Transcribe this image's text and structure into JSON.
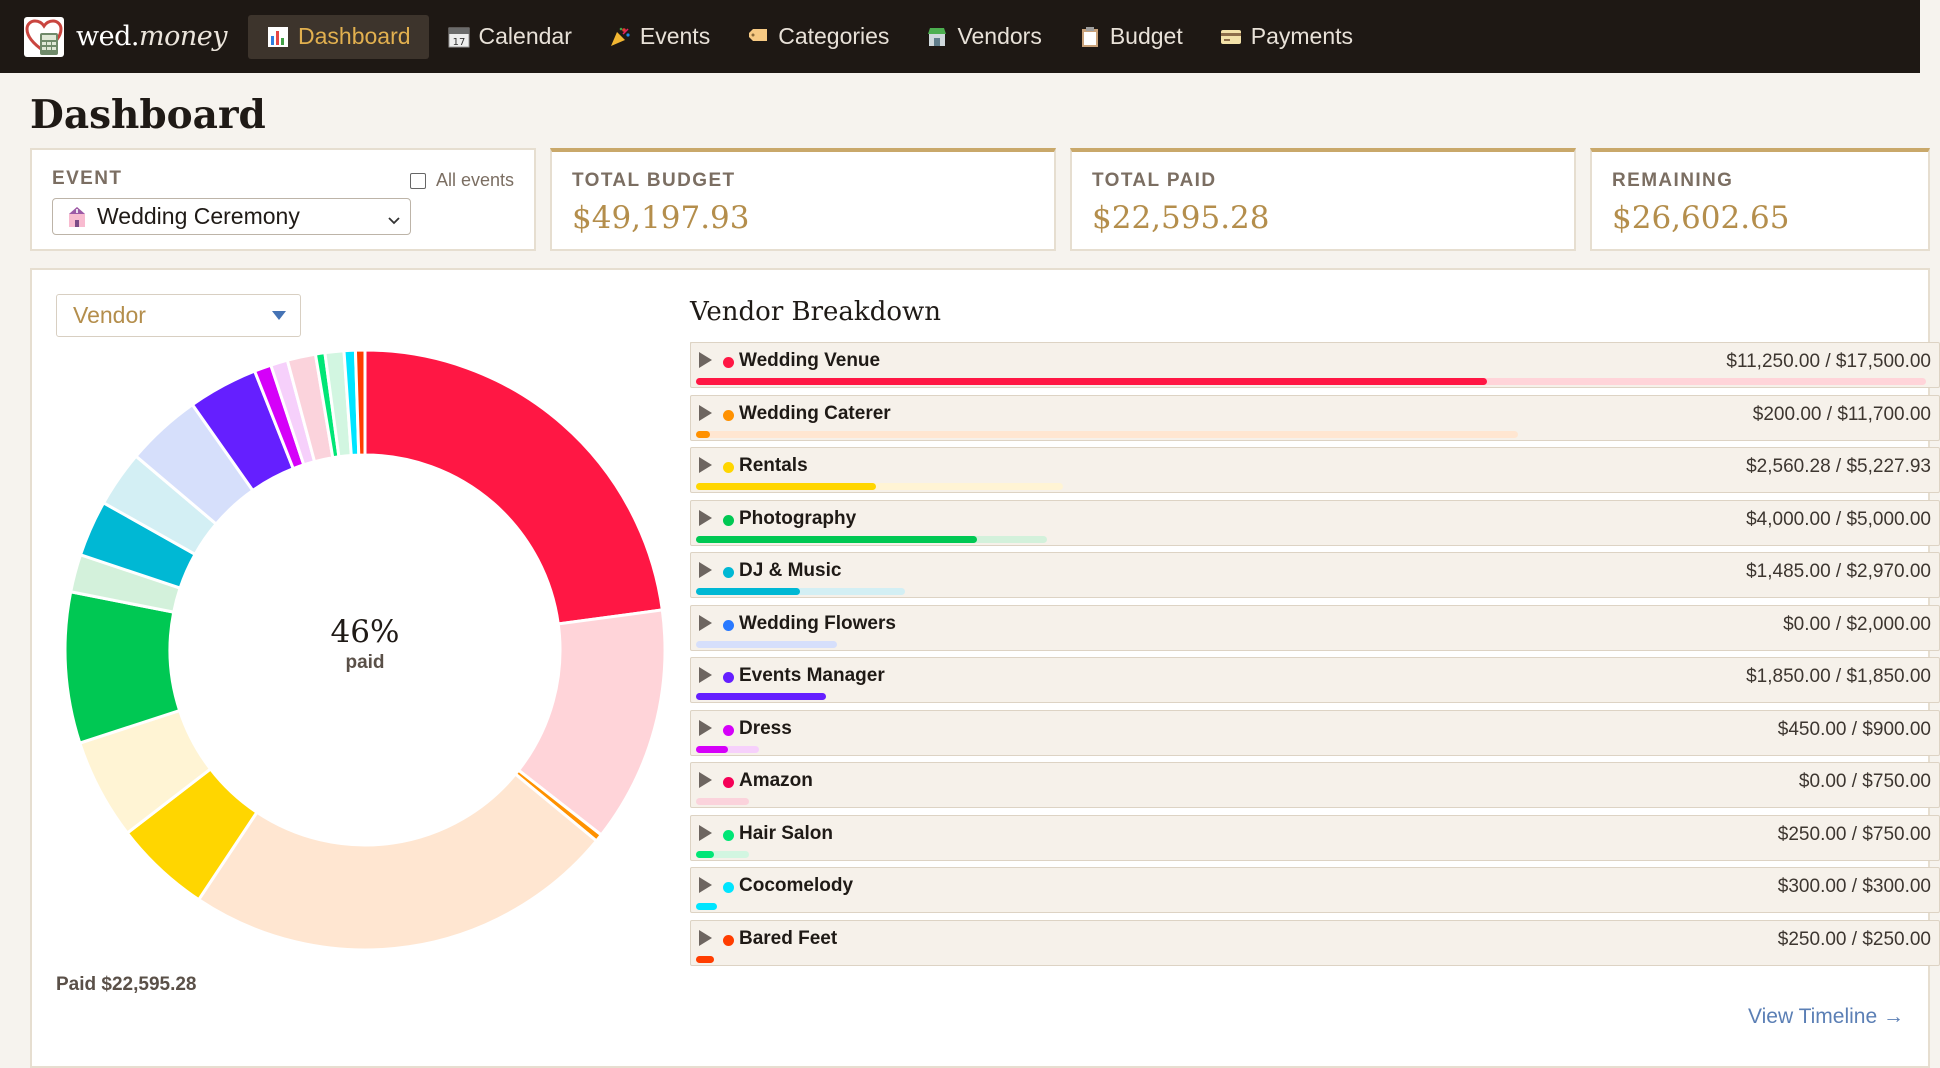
{
  "nav": {
    "brand_main": "wed.",
    "brand_italic": "money",
    "items": [
      {
        "label": "Dashboard",
        "icon": "bar-chart-icon",
        "active": true
      },
      {
        "label": "Calendar",
        "icon": "calendar-icon"
      },
      {
        "label": "Events",
        "icon": "party-popper-icon"
      },
      {
        "label": "Categories",
        "icon": "tag-icon"
      },
      {
        "label": "Vendors",
        "icon": "store-icon"
      },
      {
        "label": "Budget",
        "icon": "clipboard-icon"
      },
      {
        "label": "Payments",
        "icon": "credit-card-icon"
      }
    ]
  },
  "page": {
    "title": "Dashboard"
  },
  "event_card": {
    "label": "EVENT",
    "all_events_label": "All events",
    "selected_event": "Wedding Ceremony"
  },
  "summary": {
    "total_budget_label": "TOTAL BUDGET",
    "total_budget": "$49,197.93",
    "total_paid_label": "TOTAL PAID",
    "total_paid": "$22,595.28",
    "remaining_label": "REMAINING",
    "remaining": "$26,602.65"
  },
  "panel": {
    "group_by": "Vendor",
    "center_percent": "46%",
    "center_label": "paid",
    "paid_note": "Paid $22,595.28",
    "breakdown_title": "Vendor Breakdown",
    "view_timeline": "View Timeline →"
  },
  "chart_data": {
    "type": "pie",
    "donut": true,
    "series": [
      {
        "name": "Wedding Venue",
        "paid": 11250.0,
        "budget": 17500.0,
        "amount_label": "$11,250.00 / $17,500.00",
        "color": "#ff1744",
        "light": "#ffd4d9"
      },
      {
        "name": "Wedding Caterer",
        "paid": 200.0,
        "budget": 11700.0,
        "amount_label": "$200.00 / $11,700.00",
        "color": "#ff9100",
        "light": "#ffe6d1"
      },
      {
        "name": "Rentals",
        "paid": 2560.28,
        "budget": 5227.93,
        "amount_label": "$2,560.28 / $5,227.93",
        "color": "#ffd600",
        "light": "#fff4d4"
      },
      {
        "name": "Photography",
        "paid": 4000.0,
        "budget": 5000.0,
        "amount_label": "$4,000.00 / $5,000.00",
        "color": "#00c853",
        "light": "#d3f1db"
      },
      {
        "name": "DJ & Music",
        "paid": 1485.0,
        "budget": 2970.0,
        "amount_label": "$1,485.00 / $2,970.00",
        "color": "#00b8d4",
        "light": "#d3eff4"
      },
      {
        "name": "Wedding Flowers",
        "paid": 0.0,
        "budget": 2000.0,
        "amount_label": "$0.00 / $2,000.00",
        "color": "#2979ff",
        "light": "#d6dffb"
      },
      {
        "name": "Events Manager",
        "paid": 1850.0,
        "budget": 1850.0,
        "amount_label": "$1,850.00 / $1,850.00",
        "color": "#651fff",
        "light": "#e0d6ff"
      },
      {
        "name": "Dress",
        "paid": 450.0,
        "budget": 900.0,
        "amount_label": "$450.00 / $900.00",
        "color": "#d500f9",
        "light": "#f6d0fb"
      },
      {
        "name": "Amazon",
        "paid": 0.0,
        "budget": 750.0,
        "amount_label": "$0.00 / $750.00",
        "color": "#f50057",
        "light": "#fbd3dc"
      },
      {
        "name": "Hair Salon",
        "paid": 250.0,
        "budget": 750.0,
        "amount_label": "$250.00 / $750.00",
        "color": "#00e676",
        "light": "#d2f6e1"
      },
      {
        "name": "Cocomelody",
        "paid": 300.0,
        "budget": 300.0,
        "amount_label": "$300.00 / $300.00",
        "color": "#00e5ff",
        "light": "#d0f5fa"
      },
      {
        "name": "Bared Feet",
        "paid": 250.0,
        "budget": 250.0,
        "amount_label": "$250.00 / $250.00",
        "color": "#ff3d00",
        "light": "#ffd9cc"
      }
    ]
  }
}
